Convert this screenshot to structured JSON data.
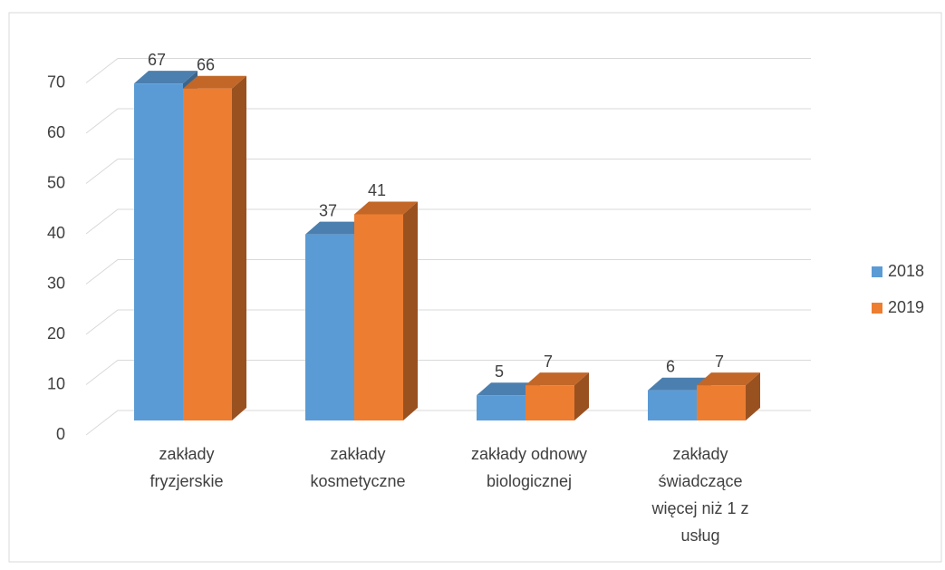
{
  "chart_data": {
    "type": "bar3d",
    "categories": [
      "zakłady fryzjerskie",
      "zakłady kosmetyczne",
      "zakłady odnowy biologicznej",
      "zakłady świadczące więcej niż 1 z usług"
    ],
    "series": [
      {
        "name": "2018",
        "color": "#5b9bd5",
        "values": [
          67,
          37,
          5,
          6
        ]
      },
      {
        "name": "2019",
        "color": "#ed7d31",
        "values": [
          66,
          41,
          7,
          7
        ]
      }
    ],
    "ylim": [
      0,
      70
    ],
    "yticks": [
      0,
      10,
      20,
      30,
      40,
      50,
      60,
      70
    ],
    "grid": true,
    "legend": "right"
  }
}
